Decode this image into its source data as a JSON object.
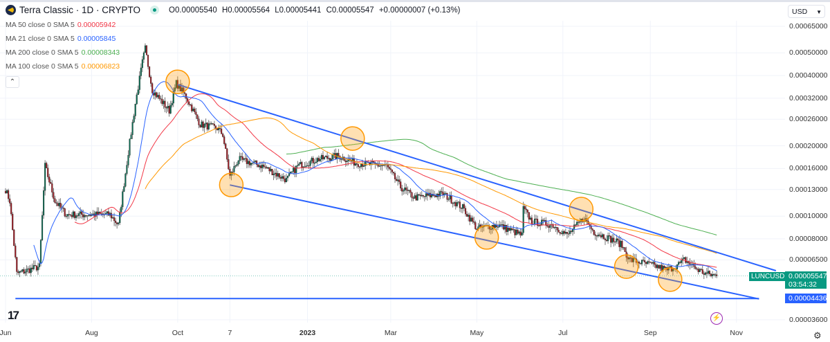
{
  "header": {
    "title": "Terra Classic · 1D · CRYPTO",
    "open": "O0.00005540",
    "high": "H0.00005564",
    "low": "L0.00005441",
    "close": "C0.00005547",
    "change": "+0.00000007 (+0.13%)",
    "collapse_icon": "chevron-up-icon"
  },
  "indicators": [
    {
      "label": "MA 50 close 0 SMA 5",
      "value": "0.00005942",
      "color": "#f23645",
      "period": 50
    },
    {
      "label": "MA 21 close 0 SMA 5",
      "value": "0.00005845",
      "color": "#2962ff",
      "period": 21
    },
    {
      "label": "MA 200 close 0 SMA 5",
      "value": "0.00008343",
      "color": "#4caf50",
      "period": 200
    },
    {
      "label": "MA 100 close 0 SMA 5",
      "value": "0.00006823",
      "color": "#ff9800",
      "period": 100
    }
  ],
  "currency": "USD",
  "symbol_tag": "LUNCUSD",
  "last_price": "0.00005547",
  "countdown": "03:54:32",
  "horizontal_line_label": "0.00004436",
  "colors": {
    "up": "#089981",
    "down": "#f23645",
    "trendline": "#2962ff",
    "highlight": "#ff9800"
  },
  "chart_data": {
    "type": "candlestick",
    "scale": "log",
    "grid": true,
    "ylim": [
      3.3e-05,
      0.00069
    ],
    "xlim": [
      "2022-06-01",
      "2023-11-20"
    ],
    "y_ticks": [
      "0.00065000",
      "0.00050000",
      "0.00040000",
      "0.00032000",
      "0.00026000",
      "0.00020000",
      "0.00016000",
      "0.00013000",
      "0.00010000",
      "0.00008000",
      "0.00006500",
      "0.00003600"
    ],
    "x_ticks": [
      {
        "label": "Jun",
        "date": "2022-06-01"
      },
      {
        "label": "Aug",
        "date": "2022-08-01"
      },
      {
        "label": "Oct",
        "date": "2022-10-01"
      },
      {
        "label": "7",
        "date": "2022-11-07"
      },
      {
        "label": "2023",
        "date": "2023-01-01",
        "bold": true
      },
      {
        "label": "Mar",
        "date": "2023-03-01"
      },
      {
        "label": "May",
        "date": "2023-05-01"
      },
      {
        "label": "Jul",
        "date": "2023-07-01"
      },
      {
        "label": "Sep",
        "date": "2023-09-01"
      },
      {
        "label": "Nov",
        "date": "2023-11-01"
      }
    ],
    "close_path": [
      [
        "2022-06-01",
        0.00013
      ],
      [
        "2022-06-04",
        0.000116
      ],
      [
        "2022-06-09",
        5.68e-05
      ],
      [
        "2022-06-25",
        6.08e-05
      ],
      [
        "2022-06-29",
        0.000164
      ],
      [
        "2022-07-06",
        0.000116
      ],
      [
        "2022-07-14",
        0.0001015
      ],
      [
        "2022-08-14",
        0.0001015
      ],
      [
        "2022-08-20",
        9.17e-05
      ],
      [
        "2022-08-27",
        0.0001877
      ],
      [
        "2022-09-01",
        0.000303
      ],
      [
        "2022-09-06",
        0.000456
      ],
      [
        "2022-09-08",
        0.000522
      ],
      [
        "2022-09-13",
        0.000347
      ],
      [
        "2022-09-25",
        0.000283
      ],
      [
        "2022-09-30",
        0.000371
      ],
      [
        "2022-10-07",
        0.000324
      ],
      [
        "2022-10-17",
        0.000247
      ],
      [
        "2022-10-29",
        0.000238
      ],
      [
        "2022-11-02",
        0.000223
      ],
      [
        "2022-11-07",
        0.000148
      ],
      [
        "2022-11-13",
        0.000175
      ],
      [
        "2022-11-30",
        0.000164
      ],
      [
        "2022-12-17",
        0.000143
      ],
      [
        "2022-12-25",
        0.000164
      ],
      [
        "2023-01-08",
        0.000175
      ],
      [
        "2023-01-23",
        0.000181
      ],
      [
        "2023-02-04",
        0.000169
      ],
      [
        "2023-02-17",
        0.000166
      ],
      [
        "2023-02-26",
        0.000164
      ],
      [
        "2023-03-08",
        0.000133
      ],
      [
        "2023-03-18",
        0.00012
      ],
      [
        "2023-04-07",
        0.0001246
      ],
      [
        "2023-04-21",
        0.0001088
      ],
      [
        "2023-05-01",
        8.86e-05
      ],
      [
        "2023-05-16",
        9.17e-05
      ],
      [
        "2023-06-02",
        8.28e-05
      ],
      [
        "2023-06-03",
        0.000108
      ],
      [
        "2023-06-09",
        9.48e-05
      ],
      [
        "2023-06-24",
        9.17e-05
      ],
      [
        "2023-07-04",
        8.28e-05
      ],
      [
        "2023-07-16",
        9.81e-05
      ],
      [
        "2023-07-23",
        8.56e-05
      ],
      [
        "2023-08-09",
        7.73e-05
      ],
      [
        "2023-08-12",
        7.47e-05
      ],
      [
        "2023-08-17",
        6.52e-05
      ],
      [
        "2023-08-27",
        6.3e-05
      ],
      [
        "2023-09-06",
        6.08e-05
      ],
      [
        "2023-09-13",
        5.88e-05
      ],
      [
        "2023-09-23",
        6.3e-05
      ],
      [
        "2023-09-25",
        6.52e-05
      ],
      [
        "2023-10-05",
        5.88e-05
      ],
      [
        "2023-10-10",
        5.68e-05
      ],
      [
        "2023-10-18",
        5.547e-05
      ]
    ],
    "trendlines": [
      {
        "name": "upper",
        "from": [
          "2022-10-01",
          0.000366
        ],
        "to": [
          "2023-11-29",
          5.84e-05
        ]
      },
      {
        "name": "lower",
        "from": [
          "2022-11-07",
          0.000136
        ],
        "to": [
          "2023-11-17",
          4.42e-05
        ]
      },
      {
        "name": "horizontal-support",
        "from": [
          "2022-06-08",
          4.436e-05
        ],
        "to": [
          "2023-11-17",
          4.436e-05
        ]
      }
    ],
    "highlight_circles": [
      [
        "2022-10-01",
        0.000376
      ],
      [
        "2022-11-08",
        0.000136
      ],
      [
        "2023-02-02",
        0.000215
      ],
      [
        "2023-05-08",
        8.11e-05
      ],
      [
        "2023-07-14",
        0.0001072
      ],
      [
        "2023-08-15",
        6.08e-05
      ],
      [
        "2023-09-15",
        5.35e-05
      ]
    ]
  }
}
